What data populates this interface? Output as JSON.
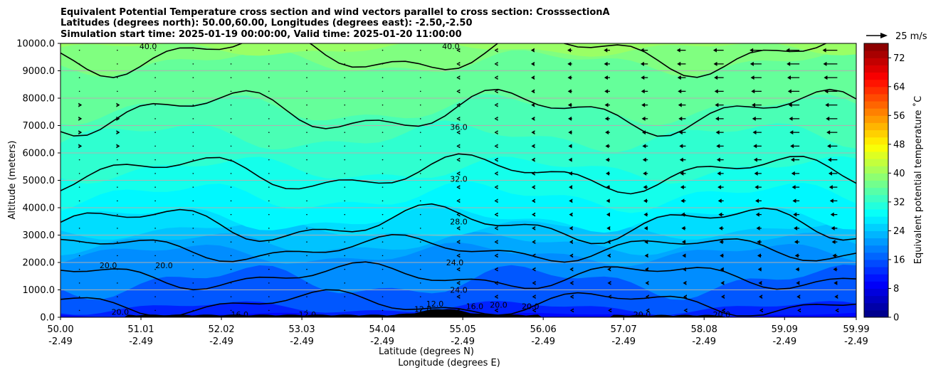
{
  "chart_data": {
    "type": "heatmap",
    "title_lines": [
      "Equivalent Potential Temperature cross section and wind vectors parallel to cross section: CrosssectionA",
      "Latitudes (degrees north): 50.00,60.00, Longitudes (degrees east): -2.50,-2.50",
      "Simulation start time: 2025-01-19 00:00:00, Valid time: 2025-01-20 11:00:00"
    ],
    "ylabel": "Altitude (meters)",
    "xlabel": "Latitude (degrees N)",
    "xlabel2": "Longitude (degrees E)",
    "ylim": [
      0,
      10000
    ],
    "yticks": [
      "0.0",
      "1000.0",
      "2000.0",
      "3000.0",
      "4000.0",
      "5000.0",
      "6000.0",
      "7000.0",
      "8000.0",
      "9000.0",
      "10000.0"
    ],
    "xlim": [
      50.0,
      59.99
    ],
    "xticks": [
      {
        "lat": "50.00",
        "lon": "-2.49"
      },
      {
        "lat": "51.01",
        "lon": "-2.49"
      },
      {
        "lat": "52.02",
        "lon": "-2.49"
      },
      {
        "lat": "53.03",
        "lon": "-2.49"
      },
      {
        "lat": "54.04",
        "lon": "-2.49"
      },
      {
        "lat": "55.05",
        "lon": "-2.49"
      },
      {
        "lat": "56.06",
        "lon": "-2.49"
      },
      {
        "lat": "57.07",
        "lon": "-2.49"
      },
      {
        "lat": "58.08",
        "lon": "-2.49"
      },
      {
        "lat": "59.09",
        "lon": "-2.49"
      },
      {
        "lat": "59.99",
        "lon": "-2.49"
      }
    ],
    "horizontal_grid": true,
    "colorbar": {
      "label": "Equivalent potential temperature ˚C",
      "min": 0,
      "max": 76,
      "ticks": [
        "0",
        "8",
        "16",
        "24",
        "32",
        "40",
        "48",
        "56",
        "64",
        "72"
      ]
    },
    "quiver_key": {
      "label": "25 m/s",
      "speed": 25
    },
    "contour_levels": [
      {
        "label": "40.0",
        "altitude": 9650
      },
      {
        "label": "36.0",
        "altitude": 7500
      },
      {
        "label": "32.0",
        "altitude": 5250
      },
      {
        "label": "28.0",
        "altitude": 3400
      },
      {
        "label": "24.0",
        "altitude": 2500
      },
      {
        "label": "20.0",
        "altitude": 1500
      },
      {
        "label": "16.0",
        "altitude": 500
      }
    ],
    "contour_labels": [
      {
        "text": "40.0",
        "lat": 51.1,
        "alt": 9900
      },
      {
        "text": "40.0",
        "lat": 54.9,
        "alt": 9900
      },
      {
        "text": "36.0",
        "lat": 55.0,
        "alt": 6950
      },
      {
        "text": "32.0",
        "lat": 55.0,
        "alt": 5050
      },
      {
        "text": "28.0",
        "lat": 55.0,
        "alt": 3500
      },
      {
        "text": "24.0",
        "lat": 54.95,
        "alt": 2000
      },
      {
        "text": "24.0",
        "lat": 55.0,
        "alt": 1000
      },
      {
        "text": "20.0",
        "lat": 50.6,
        "alt": 1900
      },
      {
        "text": "20.0",
        "lat": 51.3,
        "alt": 1900
      },
      {
        "text": "20.0",
        "lat": 50.75,
        "alt": 200
      },
      {
        "text": "20.0",
        "lat": 57.3,
        "alt": 100
      },
      {
        "text": "20.0",
        "lat": 58.3,
        "alt": 100
      },
      {
        "text": "16.0",
        "lat": 52.25,
        "alt": 100
      },
      {
        "text": "12.0",
        "lat": 53.1,
        "alt": 100
      },
      {
        "text": "12.0",
        "lat": 54.55,
        "alt": 300
      },
      {
        "text": "12.0",
        "lat": 54.7,
        "alt": 500
      },
      {
        "text": "16.0",
        "lat": 55.2,
        "alt": 400
      },
      {
        "text": "20.0",
        "lat": 55.5,
        "alt": 450
      },
      {
        "text": "20.0",
        "lat": 55.9,
        "alt": 400
      }
    ]
  },
  "colors": {
    "axis": "#000000",
    "grid": "#b0b0b0",
    "terrain": "#000000"
  }
}
